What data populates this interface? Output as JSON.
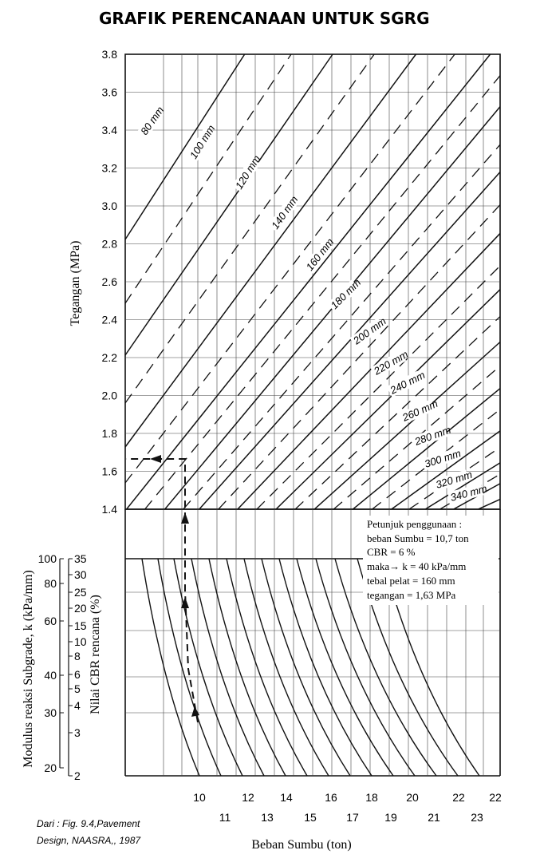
{
  "chart_data": {
    "type": "line",
    "title": "GRAFIK PERENCANAAN UNTUK SGRG",
    "upper": {
      "ylabel": "Tegangan (MPa)",
      "ylim": [
        1.4,
        3.8
      ],
      "yticks": [
        "1.4",
        "1.6",
        "1.8",
        "2.0",
        "2.2",
        "2.4",
        "2.6",
        "2.8",
        "3.0",
        "3.2",
        "3.4",
        "3.6",
        "3.8"
      ],
      "curve_labels": [
        "80 mm",
        "100 mm",
        "120 mm",
        "140 mm",
        "160 mm",
        "180 mm",
        "200 mm",
        "220 mm",
        "240 mm",
        "260 mm",
        "280 mm",
        "300 mm",
        "320 mm",
        "340 mm"
      ]
    },
    "lower": {
      "k_label": "Modulus reaksi Subgrade, k (kPa/mm)",
      "k_ticks": [
        "100",
        "80",
        "60",
        "40",
        "30",
        "20"
      ],
      "cbr_label": "Nilai CBR rencana (%)",
      "cbr_ticks": [
        "35",
        "30",
        "25",
        "20",
        "15",
        "10",
        "8",
        "6",
        "5",
        "4",
        "3",
        "2"
      ]
    },
    "xlabel": "Beban Sumbu (ton)",
    "xticks_top": [
      "10",
      "12",
      "14",
      "16",
      "18",
      "20",
      "22",
      "22"
    ],
    "xticks_bottom": [
      "11",
      "13",
      "15",
      "17",
      "19",
      "21",
      "23"
    ],
    "example": {
      "heading": "Petunjuk penggunaan :",
      "lines": [
        "beban Sumbu = 10,7 ton",
        "CBR = 6 %",
        "maka→ k = 40 kPa/mm",
        "tebal pelat = 160 mm",
        "tegangan = 1,63 MPa"
      ]
    },
    "source_lines": [
      "Dari : Fig. 9.4,Pavement",
      "Design, NAASRA,, 1987"
    ]
  }
}
